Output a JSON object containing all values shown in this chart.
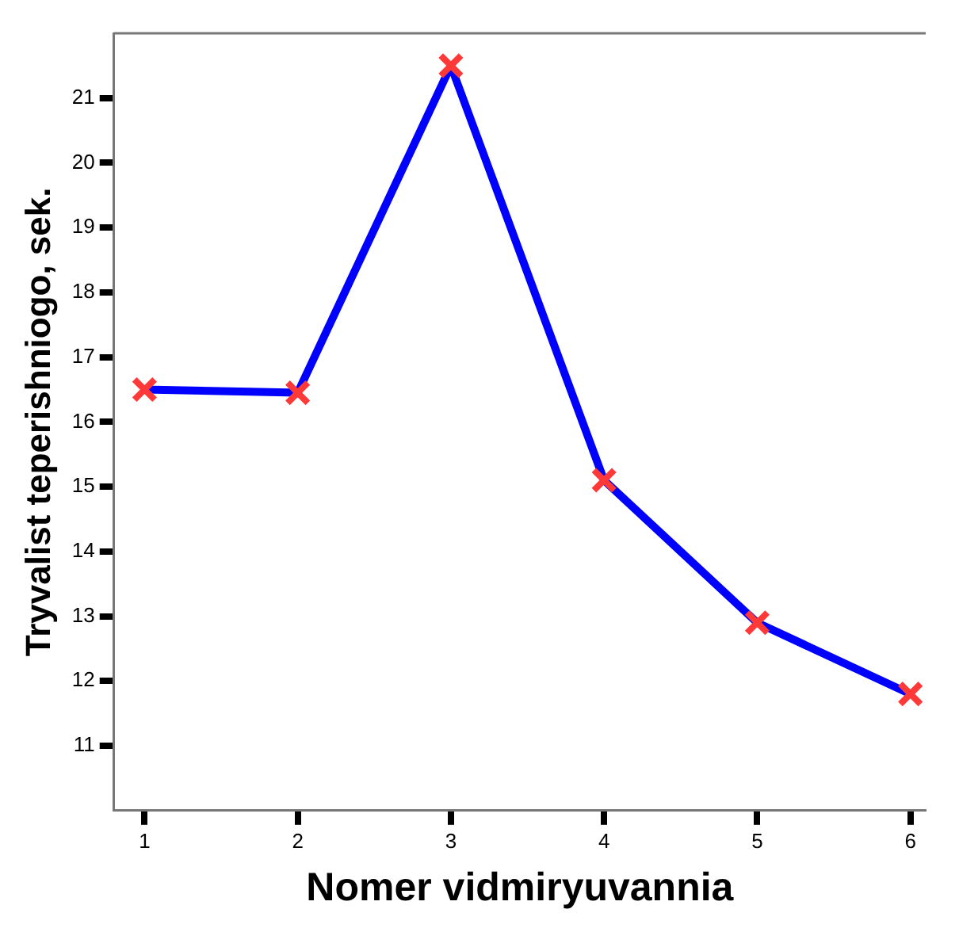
{
  "chart_data": {
    "type": "line",
    "xlabel": "Nomer vidmiryuvannia",
    "ylabel": "Tryvalist teperishniogo, sek.",
    "x": [
      1,
      2,
      3,
      4,
      5,
      6
    ],
    "series": [
      {
        "color": "#0000ff",
        "values": [
          16.5,
          16.45,
          21.5,
          15.1,
          12.9,
          11.8
        ]
      }
    ],
    "xlim": [
      0.8,
      6.1
    ],
    "xticks": [
      1,
      2,
      3,
      4,
      5,
      6
    ],
    "ylim": [
      10,
      22
    ],
    "yticks": [
      11,
      12,
      13,
      14,
      15,
      16,
      17,
      18,
      19,
      20,
      21
    ],
    "grid": false,
    "legend": false,
    "marker": "cross",
    "line_style": "solid"
  }
}
